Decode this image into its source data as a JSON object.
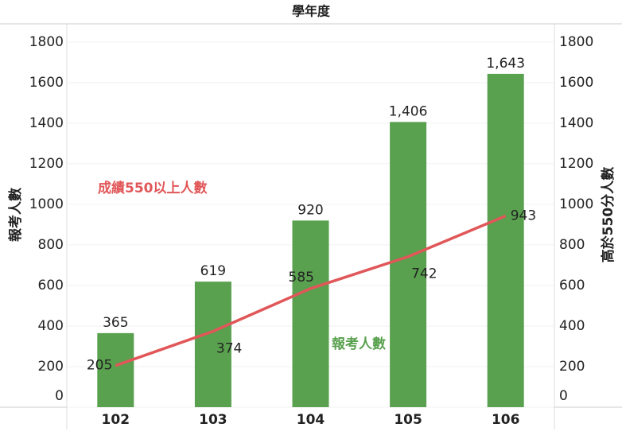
{
  "chart_data": {
    "type": "bar-line",
    "x_label": "學年度",
    "y_label": "報考人數",
    "y2_label": "高於550分人數",
    "categories": [
      "102",
      "103",
      "104",
      "105",
      "106"
    ],
    "series": [
      {
        "name": "報考人數",
        "type": "bar",
        "color": "#59a14f",
        "values": [
          365,
          619,
          920,
          1406,
          1643
        ],
        "value_labels": [
          "365",
          "619",
          "920",
          "1,406",
          "1,643"
        ]
      },
      {
        "name": "成績550以上人數",
        "type": "line",
        "axis": "y2",
        "color": "#e15759",
        "values": [
          205,
          374,
          585,
          742,
          943
        ]
      }
    ],
    "ylim": [
      0,
      1870
    ],
    "yticks": [
      0,
      200,
      400,
      600,
      800,
      1000,
      1200,
      1400,
      1600,
      1800
    ],
    "y2lim": [
      0,
      1870
    ],
    "y2ticks": [
      0,
      200,
      400,
      600,
      800,
      1000,
      1200,
      1400,
      1600,
      1800
    ],
    "grid": true
  }
}
